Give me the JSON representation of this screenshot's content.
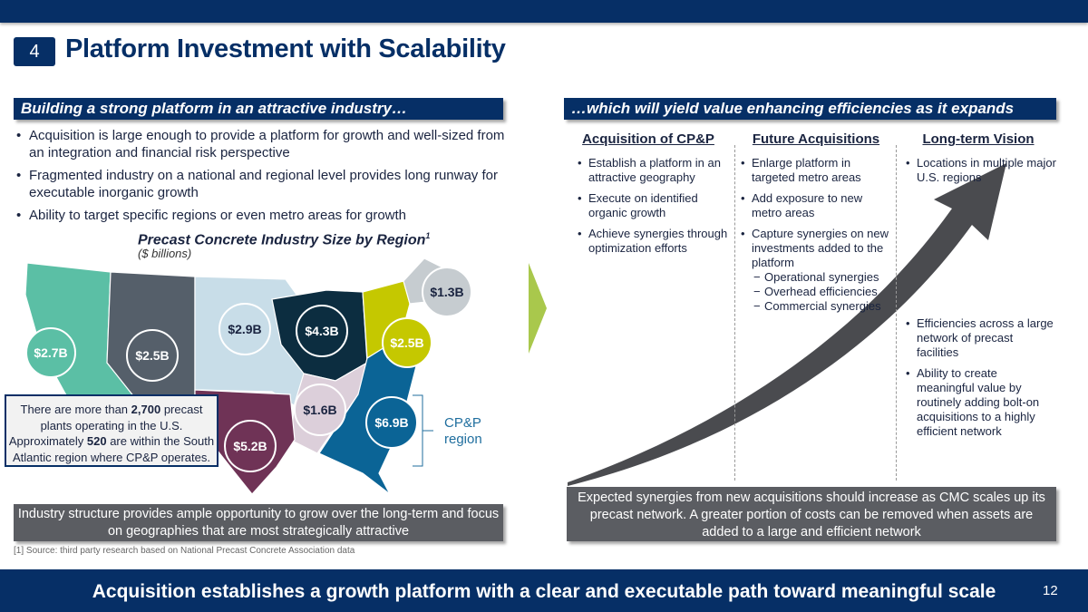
{
  "header": {
    "section_number": "4",
    "title": "Platform Investment with Scalability"
  },
  "left": {
    "banner": "Building a strong platform in an attractive industry…",
    "bullets": [
      "Acquisition is large enough to provide a platform for growth and well-sized from an integration and financial risk perspective",
      "Fragmented industry on a national and regional level provides long runway for executable inorganic growth",
      "Ability to target specific regions or even metro areas for growth"
    ],
    "map": {
      "title": "Precast Concrete Industry Size by Region",
      "title_footnote": "1",
      "subtitle": "($ billions)",
      "regions": [
        {
          "name": "Pacific",
          "value": "$2.7B",
          "color": "#5bbfa5"
        },
        {
          "name": "Mountain",
          "value": "$2.5B",
          "color": "#555f6a"
        },
        {
          "name": "West North Central",
          "value": "$2.9B",
          "color": "#c8dde8"
        },
        {
          "name": "East North Central",
          "value": "$4.3B",
          "color": "#0c2d40"
        },
        {
          "name": "Mid-Atlantic",
          "value": "$2.5B",
          "color": "#c5c800"
        },
        {
          "name": "New England",
          "value": "$1.3B",
          "color": "#c6ccd0"
        },
        {
          "name": "East South Central",
          "value": "$1.6B",
          "color": "#dccfda"
        },
        {
          "name": "South Atlantic",
          "value": "$6.9B",
          "color": "#0b6496"
        },
        {
          "name": "West South Central",
          "value": "$5.2B",
          "color": "#6f3356"
        }
      ],
      "callout": {
        "p1": "There are more than ",
        "n1": "2,700",
        "p2": " precast plants operating in the U.S. Approximately ",
        "n2": "520",
        "p3": " are within the South Atlantic region where CP&P operates."
      },
      "bracket_label": "CP&P region"
    },
    "summary": "Industry structure provides ample opportunity to grow over the long-term and focus on geographies that are most strategically attractive",
    "footnote": "[1] Source: third party research based on National Precast Concrete Association data"
  },
  "right": {
    "banner": "…which will yield value enhancing efficiencies as it expands",
    "columns": [
      {
        "header": "Acquisition of CP&P",
        "items": [
          "Establish a platform in an attractive geography",
          "Execute on identified organic growth",
          "Achieve synergies through optimization efforts"
        ]
      },
      {
        "header": "Future Acquisitions",
        "items": [
          "Enlarge platform in targeted metro areas",
          "Add exposure to new metro areas",
          "Capture synergies on new investments added to the platform"
        ],
        "subitems": [
          "Operational synergies",
          "Overhead efficiencies",
          "Commercial synergies"
        ]
      },
      {
        "header": "Long-term Vision",
        "items": [
          "Locations in multiple major U.S. regions",
          "Efficiencies across a large network of precast facilities",
          "Ability to create meaningful value by routinely adding bolt-on acquisitions to a highly efficient network"
        ]
      }
    ],
    "summary": "Expected synergies from new acquisitions should increase as CMC scales up its precast network.  A greater portion of costs can be removed when assets are added to a large and efficient network"
  },
  "footer": {
    "tagline": "Acquisition establishes a growth platform with a clear and executable path toward meaningful scale",
    "page_number": "12"
  }
}
